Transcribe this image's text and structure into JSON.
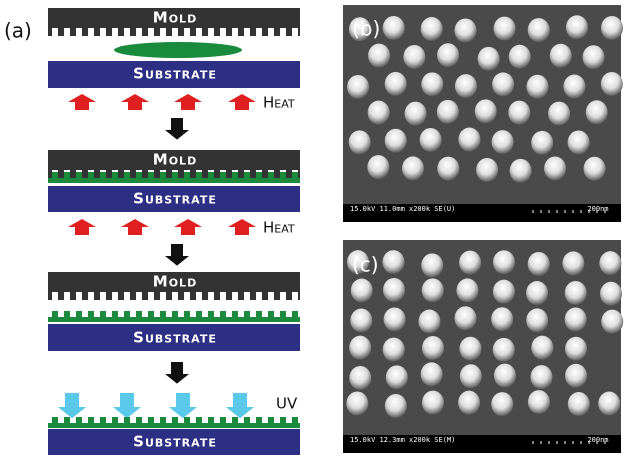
{
  "panel_a": {
    "label": "(a)",
    "steps": [
      {
        "mold": "Mold",
        "substrate": "Substrate",
        "energy": "Heat"
      },
      {
        "mold": "Mold",
        "substrate": "Substrate",
        "energy": "Heat"
      },
      {
        "mold": "Mold",
        "substrate": "Substrate"
      },
      {
        "substrate": "Substrate",
        "energy": "UV"
      }
    ]
  },
  "panel_b": {
    "label": "(b)",
    "info": "15.0kV 11.0mm x200k SE(U)",
    "scale": "200nm"
  },
  "panel_c": {
    "label": "(c)",
    "info": "15.0kV 12.3mm x200k SE(M)",
    "scale": "200nm"
  }
}
